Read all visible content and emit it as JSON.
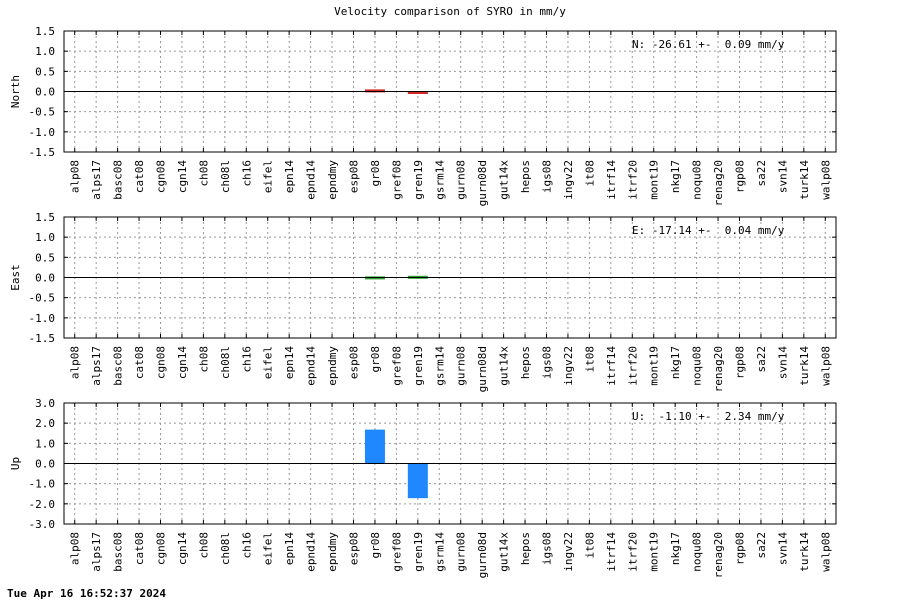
{
  "title": "Velocity comparison of SYRO in mm/y",
  "timestamp": "Tue Apr 16 16:52:37 2024",
  "chart_data": {
    "type": "bar",
    "grid": true,
    "categories": [
      "alp08",
      "alps17",
      "basc08",
      "cat08",
      "cgn08",
      "cgn14",
      "ch08",
      "ch08l",
      "ch16",
      "eifel",
      "epn14",
      "epnd14",
      "epndmy",
      "esp08",
      "gr08",
      "gref08",
      "gren19",
      "gsrm14",
      "gurn08",
      "gurn08d",
      "gut14x",
      "hepos",
      "igs08",
      "ingv22",
      "it08",
      "itrf14",
      "itrf20",
      "mont19",
      "nkg17",
      "noqu08",
      "renag20",
      "rgp08",
      "sa22",
      "svn14",
      "turk14",
      "walp08"
    ],
    "panels": [
      {
        "ylabel": "North",
        "annotation": "N: -26.61 +-  0.09 mm/y",
        "ylim": [
          -1.5,
          1.5
        ],
        "yticks": [
          "-1.5",
          "-1.0",
          "-0.5",
          "0.0",
          "0.5",
          "1.0",
          "1.5"
        ],
        "color": "#d62728",
        "values": [
          null,
          null,
          null,
          null,
          null,
          null,
          null,
          null,
          null,
          null,
          null,
          null,
          null,
          null,
          0.03,
          null,
          -0.05,
          null,
          null,
          null,
          null,
          null,
          null,
          null,
          null,
          null,
          null,
          null,
          null,
          null,
          null,
          null,
          null,
          null,
          null,
          null
        ]
      },
      {
        "ylabel": "East",
        "annotation": "E: -17.14 +-  0.04 mm/y",
        "ylim": [
          -1.5,
          1.5
        ],
        "yticks": [
          "-1.5",
          "-1.0",
          "-0.5",
          "0.0",
          "0.5",
          "1.0",
          "1.5"
        ],
        "color": "#2ca02c",
        "values": [
          null,
          null,
          null,
          null,
          null,
          null,
          null,
          null,
          null,
          null,
          null,
          null,
          null,
          null,
          -0.02,
          null,
          0.01,
          null,
          null,
          null,
          null,
          null,
          null,
          null,
          null,
          null,
          null,
          null,
          null,
          null,
          null,
          null,
          null,
          null,
          null,
          null
        ]
      },
      {
        "ylabel": "Up",
        "annotation": "U:  -1.10 +-  2.34 mm/y",
        "ylim": [
          -3.0,
          3.0
        ],
        "yticks": [
          "-3.0",
          "-2.0",
          "-1.0",
          "0.0",
          "1.0",
          "2.0",
          "3.0"
        ],
        "color": "#1f88ff",
        "values": [
          null,
          null,
          null,
          null,
          null,
          null,
          null,
          null,
          null,
          null,
          null,
          null,
          null,
          null,
          1.68,
          null,
          -1.72,
          null,
          null,
          null,
          null,
          null,
          null,
          null,
          null,
          null,
          null,
          null,
          null,
          null,
          null,
          null,
          null,
          null,
          null,
          null
        ]
      }
    ]
  }
}
